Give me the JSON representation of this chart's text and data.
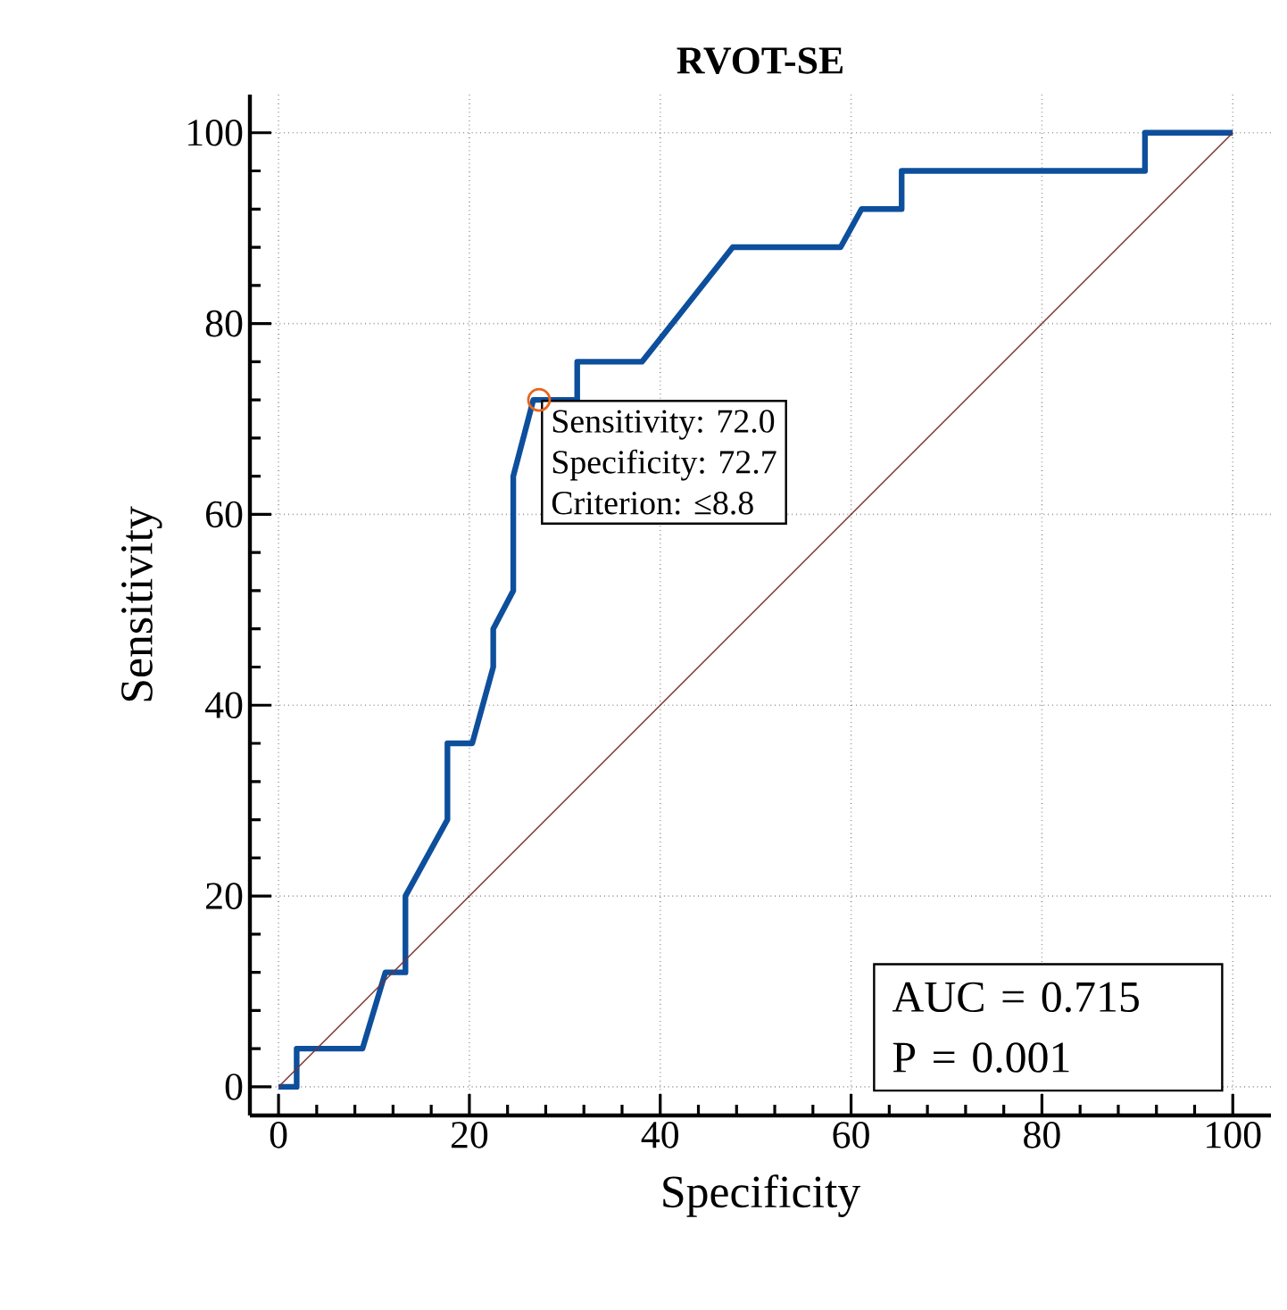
{
  "chart_data": {
    "type": "line",
    "title": "RVOT-SE",
    "xlabel": "Specificity",
    "ylabel": "Sensitivity",
    "xlim": [
      -3,
      104
    ],
    "ylim": [
      -3,
      104
    ],
    "xticks": [
      0,
      20,
      40,
      60,
      80,
      100
    ],
    "yticks": [
      0,
      20,
      40,
      60,
      80,
      100
    ],
    "grid": true,
    "series": [
      {
        "color": "#0d4f9c",
        "marker": "none",
        "x": [
          0,
          1.9,
          1.9,
          8.8,
          11.2,
          13.3,
          13.3,
          17.7,
          17.7,
          20.3,
          22.5,
          22.5,
          24.6,
          24.6,
          26.7,
          31.3,
          31.3,
          38.1,
          47.6,
          58.9,
          61.1,
          65.3,
          65.3,
          90.8,
          90.8,
          100
        ],
        "values": [
          0,
          0,
          4,
          4,
          12,
          12,
          20,
          28,
          36,
          36,
          44,
          48,
          52,
          64,
          72,
          72,
          76,
          76,
          88,
          88,
          92,
          92,
          96,
          96,
          100,
          100
        ]
      },
      {
        "color": "#7a2e2e",
        "marker": "none",
        "x": [
          0,
          100
        ],
        "values": [
          0,
          100
        ]
      },
      {
        "type": "scatter",
        "color": "#e8641e",
        "marker": "circle",
        "x": [
          27.3
        ],
        "values": [
          72
        ]
      }
    ],
    "annotations": [
      "Sensitivity: 72.0",
      "Specificity: 72.7",
      "Criterion: ≤8.8",
      "AUC = 0.715",
      "P = 0.001"
    ]
  }
}
